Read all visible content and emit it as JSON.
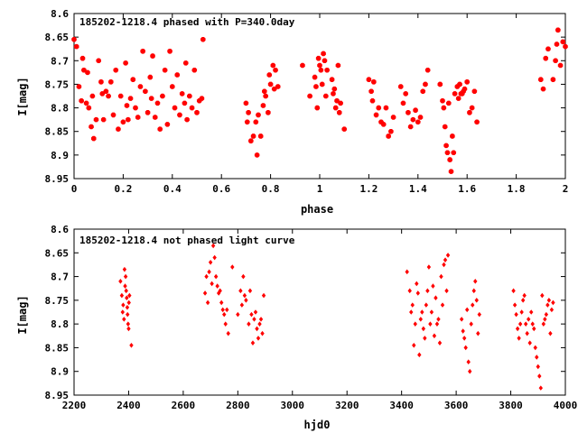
{
  "chart_data": [
    {
      "type": "scatter",
      "title": "185202-1218.4 phased with P=340.0day",
      "xlabel": "phase",
      "ylabel": "I[mag]",
      "xlim": [
        0,
        2
      ],
      "ylim": [
        8.95,
        8.6
      ],
      "y_inverted": true,
      "x_ticks": [
        "0",
        "0.2",
        "0.4",
        "0.6",
        "0.8",
        "1",
        "1.2",
        "1.4",
        "1.6",
        "1.8",
        "2"
      ],
      "y_ticks": [
        "8.6",
        "8.65",
        "8.7",
        "8.75",
        "8.8",
        "8.85",
        "8.9",
        "8.95"
      ],
      "marker_color": "#ff0000",
      "points": [
        [
          0.0,
          8.655
        ],
        [
          0.01,
          8.67
        ],
        [
          0.02,
          8.755
        ],
        [
          0.03,
          8.785
        ],
        [
          0.035,
          8.695
        ],
        [
          0.04,
          8.72
        ],
        [
          0.05,
          8.79
        ],
        [
          0.055,
          8.725
        ],
        [
          0.06,
          8.8
        ],
        [
          0.07,
          8.84
        ],
        [
          0.075,
          8.775
        ],
        [
          0.08,
          8.865
        ],
        [
          0.09,
          8.825
        ],
        [
          0.1,
          8.7
        ],
        [
          0.11,
          8.745
        ],
        [
          0.115,
          8.77
        ],
        [
          0.12,
          8.825
        ],
        [
          0.13,
          8.765
        ],
        [
          0.14,
          8.775
        ],
        [
          0.15,
          8.745
        ],
        [
          0.16,
          8.815
        ],
        [
          0.17,
          8.72
        ],
        [
          0.18,
          8.845
        ],
        [
          0.19,
          8.775
        ],
        [
          0.2,
          8.83
        ],
        [
          0.21,
          8.705
        ],
        [
          0.215,
          8.795
        ],
        [
          0.22,
          8.825
        ],
        [
          0.23,
          8.78
        ],
        [
          0.24,
          8.74
        ],
        [
          0.25,
          8.8
        ],
        [
          0.26,
          8.82
        ],
        [
          0.27,
          8.755
        ],
        [
          0.28,
          8.68
        ],
        [
          0.29,
          8.765
        ],
        [
          0.3,
          8.81
        ],
        [
          0.31,
          8.735
        ],
        [
          0.315,
          8.78
        ],
        [
          0.32,
          8.69
        ],
        [
          0.33,
          8.82
        ],
        [
          0.34,
          8.79
        ],
        [
          0.35,
          8.845
        ],
        [
          0.36,
          8.775
        ],
        [
          0.37,
          8.72
        ],
        [
          0.38,
          8.835
        ],
        [
          0.39,
          8.68
        ],
        [
          0.4,
          8.755
        ],
        [
          0.41,
          8.8
        ],
        [
          0.42,
          8.73
        ],
        [
          0.43,
          8.815
        ],
        [
          0.44,
          8.77
        ],
        [
          0.45,
          8.79
        ],
        [
          0.455,
          8.705
        ],
        [
          0.46,
          8.825
        ],
        [
          0.47,
          8.775
        ],
        [
          0.48,
          8.8
        ],
        [
          0.49,
          8.72
        ],
        [
          0.5,
          8.81
        ],
        [
          0.51,
          8.785
        ],
        [
          0.52,
          8.78
        ],
        [
          0.525,
          8.655
        ],
        [
          0.7,
          8.79
        ],
        [
          0.705,
          8.83
        ],
        [
          0.71,
          8.81
        ],
        [
          0.72,
          8.87
        ],
        [
          0.73,
          8.86
        ],
        [
          0.74,
          8.83
        ],
        [
          0.745,
          8.9
        ],
        [
          0.75,
          8.815
        ],
        [
          0.76,
          8.86
        ],
        [
          0.77,
          8.795
        ],
        [
          0.775,
          8.765
        ],
        [
          0.78,
          8.775
        ],
        [
          0.79,
          8.81
        ],
        [
          0.795,
          8.73
        ],
        [
          0.8,
          8.75
        ],
        [
          0.81,
          8.71
        ],
        [
          0.815,
          8.76
        ],
        [
          0.82,
          8.72
        ],
        [
          0.83,
          8.755
        ],
        [
          0.93,
          8.71
        ],
        [
          0.96,
          8.775
        ],
        [
          0.98,
          8.735
        ],
        [
          0.985,
          8.755
        ],
        [
          0.99,
          8.8
        ],
        [
          0.995,
          8.695
        ],
        [
          1.0,
          8.71
        ],
        [
          1.005,
          8.72
        ],
        [
          1.01,
          8.75
        ],
        [
          1.015,
          8.685
        ],
        [
          1.02,
          8.7
        ],
        [
          1.025,
          8.775
        ],
        [
          1.03,
          8.72
        ],
        [
          1.05,
          8.74
        ],
        [
          1.055,
          8.77
        ],
        [
          1.06,
          8.76
        ],
        [
          1.065,
          8.8
        ],
        [
          1.07,
          8.785
        ],
        [
          1.075,
          8.71
        ],
        [
          1.08,
          8.81
        ],
        [
          1.085,
          8.79
        ],
        [
          1.1,
          8.845
        ],
        [
          1.2,
          8.74
        ],
        [
          1.21,
          8.765
        ],
        [
          1.215,
          8.785
        ],
        [
          1.22,
          8.745
        ],
        [
          1.23,
          8.815
        ],
        [
          1.24,
          8.8
        ],
        [
          1.25,
          8.83
        ],
        [
          1.26,
          8.835
        ],
        [
          1.27,
          8.8
        ],
        [
          1.28,
          8.86
        ],
        [
          1.29,
          8.85
        ],
        [
          1.3,
          8.82
        ],
        [
          1.33,
          8.755
        ],
        [
          1.34,
          8.79
        ],
        [
          1.35,
          8.77
        ],
        [
          1.36,
          8.81
        ],
        [
          1.37,
          8.84
        ],
        [
          1.38,
          8.825
        ],
        [
          1.39,
          8.805
        ],
        [
          1.4,
          8.83
        ],
        [
          1.41,
          8.82
        ],
        [
          1.42,
          8.765
        ],
        [
          1.43,
          8.75
        ],
        [
          1.44,
          8.72
        ],
        [
          1.49,
          8.75
        ],
        [
          1.5,
          8.785
        ],
        [
          1.505,
          8.8
        ],
        [
          1.51,
          8.84
        ],
        [
          1.515,
          8.88
        ],
        [
          1.52,
          8.895
        ],
        [
          1.525,
          8.79
        ],
        [
          1.53,
          8.91
        ],
        [
          1.535,
          8.935
        ],
        [
          1.54,
          8.86
        ],
        [
          1.545,
          8.895
        ],
        [
          1.55,
          8.77
        ],
        [
          1.56,
          8.755
        ],
        [
          1.565,
          8.78
        ],
        [
          1.57,
          8.75
        ],
        [
          1.575,
          8.77
        ],
        [
          1.58,
          8.77
        ],
        [
          1.585,
          8.765
        ],
        [
          1.59,
          8.76
        ],
        [
          1.6,
          8.745
        ],
        [
          1.61,
          8.81
        ],
        [
          1.62,
          8.8
        ],
        [
          1.63,
          8.765
        ],
        [
          1.64,
          8.83
        ],
        [
          1.9,
          8.74
        ],
        [
          1.91,
          8.76
        ],
        [
          1.92,
          8.695
        ],
        [
          1.93,
          8.675
        ],
        [
          1.95,
          8.74
        ],
        [
          1.96,
          8.7
        ],
        [
          1.965,
          8.665
        ],
        [
          1.97,
          8.635
        ],
        [
          1.98,
          8.71
        ],
        [
          1.99,
          8.66
        ],
        [
          2.0,
          8.67
        ]
      ]
    },
    {
      "type": "scatter",
      "title": "185202-1218.4 not phased light curve",
      "xlabel": "hjd0",
      "ylabel": "I[mag]",
      "xlim": [
        2200,
        4000
      ],
      "ylim": [
        8.95,
        8.6
      ],
      "y_inverted": true,
      "x_ticks": [
        "2200",
        "2400",
        "2600",
        "2800",
        "3000",
        "3200",
        "3400",
        "3600",
        "3800",
        "4000"
      ],
      "y_ticks": [
        "8.6",
        "8.65",
        "8.7",
        "8.75",
        "8.8",
        "8.85",
        "8.9",
        "8.95"
      ],
      "marker_color": "#ff0000",
      "points": [
        [
          2370,
          8.71
        ],
        [
          2375,
          8.74
        ],
        [
          2378,
          8.775
        ],
        [
          2380,
          8.76
        ],
        [
          2383,
          8.79
        ],
        [
          2385,
          8.685
        ],
        [
          2387,
          8.72
        ],
        [
          2389,
          8.7
        ],
        [
          2391,
          8.73
        ],
        [
          2393,
          8.745
        ],
        [
          2395,
          8.765
        ],
        [
          2396,
          8.78
        ],
        [
          2398,
          8.8
        ],
        [
          2400,
          8.81
        ],
        [
          2401,
          8.755
        ],
        [
          2403,
          8.74
        ],
        [
          2410,
          8.845
        ],
        [
          2680,
          8.735
        ],
        [
          2685,
          8.7
        ],
        [
          2690,
          8.755
        ],
        [
          2695,
          8.69
        ],
        [
          2700,
          8.67
        ],
        [
          2705,
          8.715
        ],
        [
          2710,
          8.635
        ],
        [
          2715,
          8.66
        ],
        [
          2720,
          8.7
        ],
        [
          2725,
          8.72
        ],
        [
          2730,
          8.735
        ],
        [
          2735,
          8.73
        ],
        [
          2740,
          8.755
        ],
        [
          2745,
          8.77
        ],
        [
          2750,
          8.78
        ],
        [
          2755,
          8.8
        ],
        [
          2760,
          8.77
        ],
        [
          2765,
          8.82
        ],
        [
          2780,
          8.68
        ],
        [
          2800,
          8.78
        ],
        [
          2810,
          8.73
        ],
        [
          2815,
          8.76
        ],
        [
          2820,
          8.7
        ],
        [
          2825,
          8.74
        ],
        [
          2830,
          8.75
        ],
        [
          2840,
          8.8
        ],
        [
          2845,
          8.73
        ],
        [
          2850,
          8.78
        ],
        [
          2855,
          8.84
        ],
        [
          2860,
          8.79
        ],
        [
          2865,
          8.775
        ],
        [
          2870,
          8.81
        ],
        [
          2875,
          8.83
        ],
        [
          2880,
          8.8
        ],
        [
          2885,
          8.79
        ],
        [
          2890,
          8.82
        ],
        [
          2895,
          8.74
        ],
        [
          3420,
          8.69
        ],
        [
          3430,
          8.73
        ],
        [
          3435,
          8.775
        ],
        [
          3440,
          8.76
        ],
        [
          3445,
          8.845
        ],
        [
          3450,
          8.8
        ],
        [
          3455,
          8.715
        ],
        [
          3460,
          8.735
        ],
        [
          3465,
          8.865
        ],
        [
          3470,
          8.79
        ],
        [
          3475,
          8.775
        ],
        [
          3480,
          8.81
        ],
        [
          3485,
          8.83
        ],
        [
          3490,
          8.76
        ],
        [
          3495,
          8.73
        ],
        [
          3500,
          8.68
        ],
        [
          3505,
          8.8
        ],
        [
          3510,
          8.775
        ],
        [
          3515,
          8.72
        ],
        [
          3520,
          8.825
        ],
        [
          3525,
          8.745
        ],
        [
          3530,
          8.8
        ],
        [
          3535,
          8.79
        ],
        [
          3540,
          8.84
        ],
        [
          3545,
          8.7
        ],
        [
          3550,
          8.76
        ],
        [
          3555,
          8.675
        ],
        [
          3560,
          8.665
        ],
        [
          3565,
          8.73
        ],
        [
          3570,
          8.655
        ],
        [
          3620,
          8.79
        ],
        [
          3625,
          8.815
        ],
        [
          3630,
          8.83
        ],
        [
          3635,
          8.85
        ],
        [
          3640,
          8.77
        ],
        [
          3645,
          8.88
        ],
        [
          3650,
          8.9
        ],
        [
          3655,
          8.8
        ],
        [
          3660,
          8.76
        ],
        [
          3665,
          8.73
        ],
        [
          3670,
          8.71
        ],
        [
          3675,
          8.75
        ],
        [
          3680,
          8.82
        ],
        [
          3685,
          8.78
        ],
        [
          3810,
          8.73
        ],
        [
          3815,
          8.76
        ],
        [
          3820,
          8.78
        ],
        [
          3825,
          8.81
        ],
        [
          3830,
          8.83
        ],
        [
          3835,
          8.8
        ],
        [
          3840,
          8.775
        ],
        [
          3845,
          8.75
        ],
        [
          3850,
          8.74
        ],
        [
          3855,
          8.8
        ],
        [
          3860,
          8.82
        ],
        [
          3865,
          8.79
        ],
        [
          3870,
          8.84
        ],
        [
          3875,
          8.775
        ],
        [
          3880,
          8.8
        ],
        [
          3885,
          8.81
        ],
        [
          3890,
          8.85
        ],
        [
          3895,
          8.87
        ],
        [
          3900,
          8.89
        ],
        [
          3905,
          8.91
        ],
        [
          3910,
          8.935
        ],
        [
          3915,
          8.74
        ],
        [
          3920,
          8.8
        ],
        [
          3925,
          8.79
        ],
        [
          3930,
          8.78
        ],
        [
          3935,
          8.76
        ],
        [
          3940,
          8.75
        ],
        [
          3945,
          8.82
        ],
        [
          3950,
          8.77
        ],
        [
          3955,
          8.755
        ]
      ]
    }
  ]
}
